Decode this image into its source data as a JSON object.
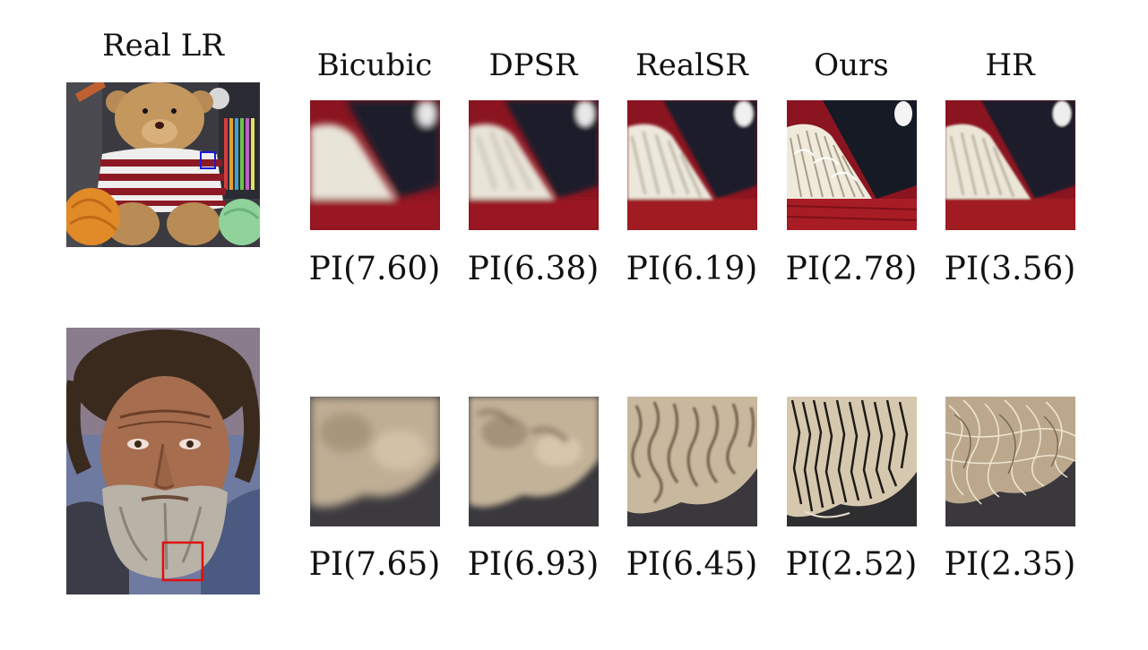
{
  "row_header": "Real LR",
  "columns": [
    "Bicubic",
    "DPSR",
    "RealSR",
    "Ours",
    "HR"
  ],
  "rows": [
    {
      "name": "teddy-bear",
      "scores": [
        "PI(7.60)",
        "PI(6.38)",
        "PI(6.19)",
        "PI(2.78)",
        "PI(3.56)"
      ],
      "roi_box_color": "#1a1adc"
    },
    {
      "name": "old-man",
      "scores": [
        "PI(7.65)",
        "PI(6.93)",
        "PI(6.45)",
        "PI(2.52)",
        "PI(2.35)"
      ],
      "roi_box_color": "#e01010"
    }
  ]
}
